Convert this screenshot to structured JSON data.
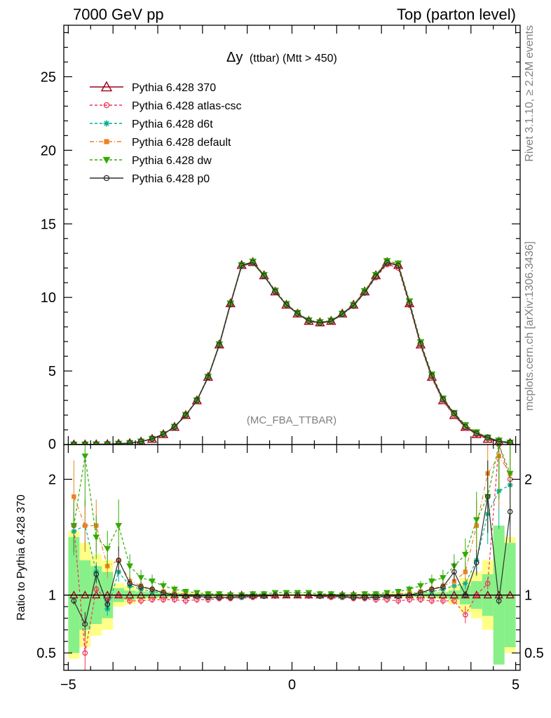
{
  "header": {
    "left": "7000 GeV pp",
    "right": "Top (parton level)"
  },
  "side_labels": {
    "rivet": "Rivet 3.1.10, ≥ 2.2M events",
    "url": "mcplots.cern.ch [arXiv:1306.3436]"
  },
  "chart_data": {
    "type": "line",
    "title_main": "Δy",
    "title_sub": "(ttbar) (Mtt > 450)",
    "watermark": "(MC_FBA_TTBAR)",
    "ratio_ylabel": "Ratio to Pythia 6.428 370",
    "xlim": [
      -5.1,
      5.1
    ],
    "x_ticks": [
      -5,
      0,
      5
    ],
    "x_tick_labels": [
      "−5",
      "0",
      "5"
    ],
    "main_ylim": [
      0,
      28.5
    ],
    "main_y_ticks": [
      5,
      10,
      15,
      20,
      25
    ],
    "main_y_tick_labels": [
      "5",
      "10",
      "15",
      "20",
      "25"
    ],
    "main_y_label_zero": "0",
    "ratio_ylim": [
      0.35,
      2.3
    ],
    "ratio_y_ticks": [
      0.5,
      1,
      2
    ],
    "ratio_y_tick_labels": [
      "0.5",
      "1",
      "2"
    ],
    "x": [
      -4.875,
      -4.625,
      -4.375,
      -4.125,
      -3.875,
      -3.625,
      -3.375,
      -3.125,
      -2.875,
      -2.625,
      -2.375,
      -2.125,
      -1.875,
      -1.625,
      -1.375,
      -1.125,
      -0.875,
      -0.625,
      -0.375,
      -0.125,
      0.125,
      0.375,
      0.625,
      0.875,
      1.125,
      1.375,
      1.625,
      1.875,
      2.125,
      2.375,
      2.625,
      2.875,
      3.125,
      3.375,
      3.625,
      3.875,
      4.125,
      4.375,
      4.625,
      4.875
    ],
    "ref_values": [
      0.003,
      0.006,
      0.012,
      0.025,
      0.05,
      0.1,
      0.2,
      0.38,
      0.7,
      1.2,
      2.0,
      3.0,
      4.6,
      6.8,
      9.6,
      12.2,
      12.4,
      11.5,
      10.4,
      9.5,
      8.9,
      8.4,
      8.3,
      8.4,
      8.9,
      9.5,
      10.4,
      11.5,
      12.4,
      12.2,
      9.6,
      6.8,
      4.6,
      3.0,
      2.0,
      1.2,
      0.7,
      0.38,
      0.2,
      0.1
    ],
    "ref_x_offset": -0.25,
    "band_yellow_half": [
      0.55,
      0.45,
      0.35,
      0.3,
      0.1,
      0.08,
      0.05,
      0.035,
      0.03,
      0.025,
      0.02,
      0.018,
      0.015,
      0.012,
      0.01,
      0.01,
      0.01,
      0.01,
      0.01,
      0.01,
      0.01,
      0.01,
      0.01,
      0.01,
      0.01,
      0.01,
      0.01,
      0.012,
      0.015,
      0.018,
      0.02,
      0.025,
      0.03,
      0.035,
      0.08,
      0.15,
      0.2,
      0.3,
      0.4,
      0.5
    ],
    "band_green_half": [
      0.5,
      0.3,
      0.25,
      0.2,
      0.06,
      0.04,
      0.03,
      0.025,
      0.02,
      0.015,
      0.012,
      0.01,
      0.008,
      0.007,
      0.006,
      0.006,
      0.006,
      0.006,
      0.006,
      0.006,
      0.006,
      0.006,
      0.006,
      0.006,
      0.006,
      0.006,
      0.006,
      0.007,
      0.008,
      0.01,
      0.012,
      0.015,
      0.02,
      0.025,
      0.04,
      0.08,
      0.12,
      0.18,
      0.6,
      0.45
    ],
    "series": [
      {
        "name": "Pythia 6.428 370",
        "color": "#a00018",
        "marker": "triangle-open",
        "dash": "",
        "values": [
          1,
          1,
          1,
          1,
          1,
          1,
          1,
          1,
          1,
          1,
          1,
          1,
          1,
          1,
          1,
          1,
          1,
          1,
          1,
          1,
          1,
          1,
          1,
          1,
          1,
          1,
          1,
          1,
          1,
          1,
          1,
          1,
          1,
          1,
          1,
          1,
          1,
          1,
          1,
          1
        ]
      },
      {
        "name": "Pythia 6.428 atlas-csc",
        "color": "#ee3355",
        "marker": "circle-open",
        "dash": "4,3",
        "values": [
          1.6,
          0.5,
          1.05,
          0.96,
          1.0,
          0.95,
          0.95,
          0.96,
          0.96,
          0.96,
          0.95,
          0.96,
          0.96,
          0.97,
          0.97,
          0.98,
          0.98,
          0.99,
          0.99,
          1.0,
          1.0,
          0.99,
          0.99,
          0.98,
          0.98,
          0.97,
          0.97,
          0.96,
          0.96,
          0.95,
          0.96,
          0.96,
          0.95,
          0.95,
          0.95,
          0.83,
          1.0,
          1.1,
          2.3,
          2.0
        ]
      },
      {
        "name": "Pythia 6.428 d6t",
        "color": "#00b090",
        "marker": "star",
        "dash": "4,3",
        "values": [
          1.55,
          1.6,
          1.2,
          0.88,
          1.2,
          1.08,
          1.05,
          1.03,
          1.02,
          1.01,
          1.0,
          0.99,
          0.99,
          0.98,
          0.98,
          0.98,
          0.99,
          0.99,
          1.0,
          1.0,
          1.0,
          1.0,
          0.99,
          0.99,
          0.98,
          0.98,
          0.98,
          0.99,
          0.99,
          1.0,
          1.01,
          1.02,
          1.03,
          1.05,
          1.08,
          1.1,
          1.3,
          1.7,
          1.9,
          1.95
        ]
      },
      {
        "name": "Pythia 6.428 default",
        "color": "#f08020",
        "marker": "square",
        "dash": "6,3,1,3",
        "values": [
          1.85,
          1.6,
          1.6,
          1.25,
          1.3,
          1.12,
          1.08,
          1.05,
          1.03,
          1.02,
          1.01,
          1.0,
          1.0,
          0.99,
          0.99,
          0.99,
          0.99,
          1.0,
          1.0,
          1.0,
          1.0,
          1.0,
          1.0,
          0.99,
          0.99,
          0.99,
          0.99,
          1.0,
          1.0,
          1.01,
          1.02,
          1.03,
          1.05,
          1.08,
          1.12,
          1.2,
          1.6,
          2.05,
          2.2,
          2.05
        ]
      },
      {
        "name": "Pythia 6.428 dw",
        "color": "#33aa00",
        "marker": "triangle-down",
        "dash": "4,3",
        "values": [
          1.6,
          2.2,
          1.5,
          1.4,
          1.6,
          1.25,
          1.15,
          1.12,
          1.08,
          1.05,
          1.03,
          1.02,
          1.01,
          1.01,
          1.0,
          1.0,
          1.01,
          1.01,
          1.02,
          1.02,
          1.02,
          1.02,
          1.01,
          1.01,
          1.0,
          1.0,
          1.01,
          1.01,
          1.02,
          1.03,
          1.05,
          1.08,
          1.12,
          1.15,
          1.25,
          1.35,
          1.65,
          1.85,
          2.3,
          2.05
        ]
      },
      {
        "name": "Pythia 6.428 p0",
        "color": "#303030",
        "marker": "circle-open",
        "dash": "",
        "values": [
          0.95,
          0.75,
          1.18,
          0.92,
          1.3,
          1.1,
          1.07,
          1.05,
          1.02,
          1.0,
          0.99,
          0.99,
          0.98,
          0.98,
          0.98,
          0.99,
          0.99,
          0.99,
          1.0,
          1.0,
          1.0,
          1.0,
          0.99,
          0.99,
          0.99,
          0.98,
          0.98,
          0.98,
          0.99,
          0.99,
          1.0,
          1.02,
          1.05,
          1.07,
          1.2,
          1.0,
          1.28,
          1.85,
          0.95,
          1.72
        ]
      }
    ],
    "legend_position": "top-left"
  }
}
